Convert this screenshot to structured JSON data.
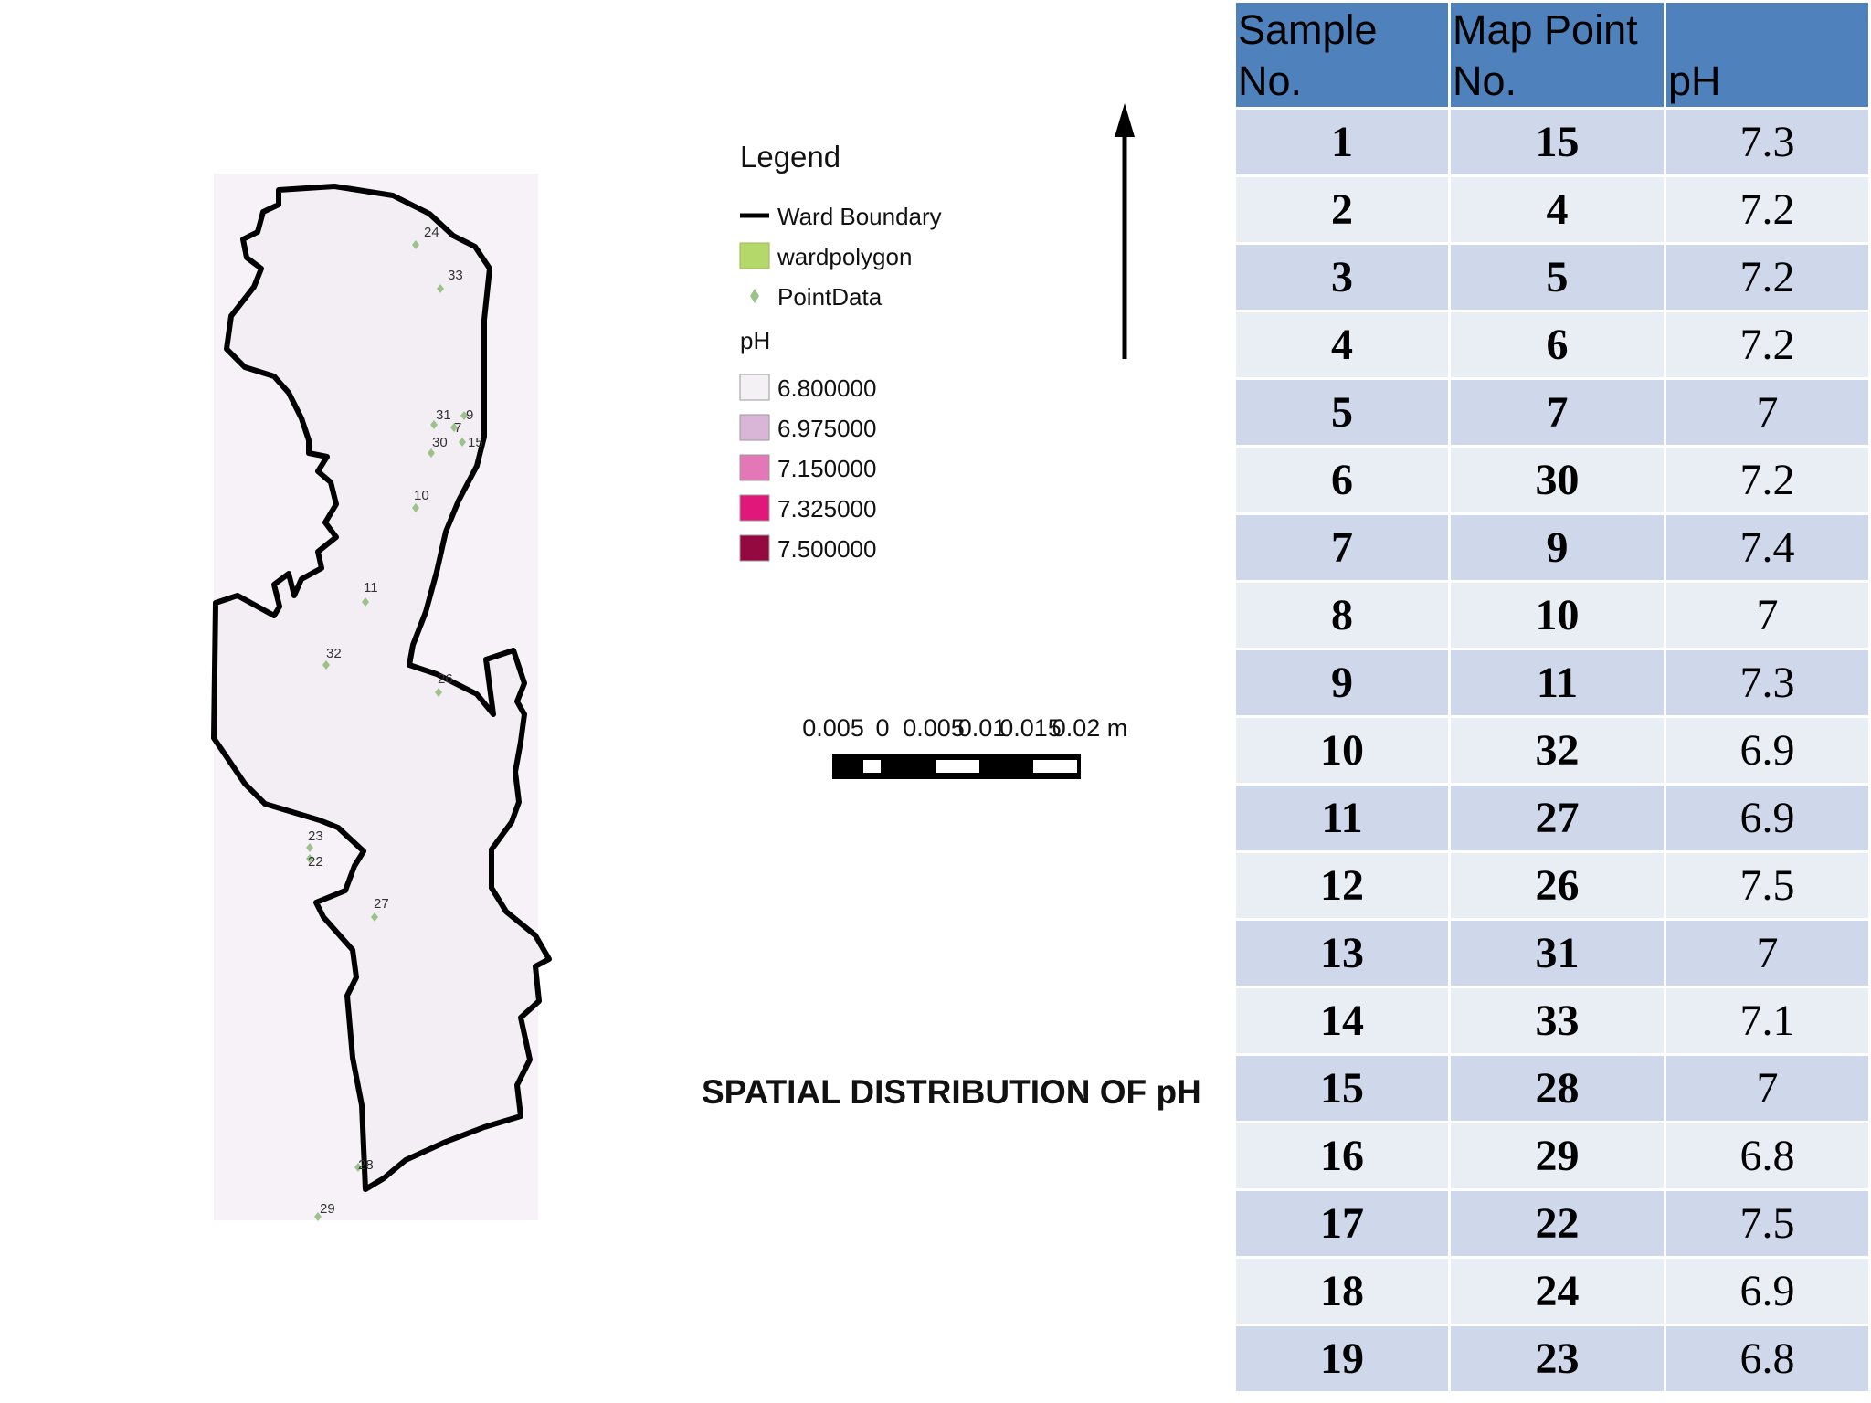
{
  "legend": {
    "title": "Legend",
    "items": [
      {
        "label": "Ward Boundary",
        "symbol": "line",
        "color": "#000000"
      },
      {
        "label": "wardpolygon",
        "symbol": "fill",
        "color": "#b5d86a"
      },
      {
        "label": "PointData",
        "symbol": "point",
        "color": "#9bc28a"
      }
    ],
    "ph_title": "pH",
    "ph_classes": [
      {
        "label": "6.800000",
        "color": "#f4f1f5"
      },
      {
        "label": "6.975000",
        "color": "#d9b6d8"
      },
      {
        "label": "7.150000",
        "color": "#e377b8"
      },
      {
        "label": "7.325000",
        "color": "#e2177a"
      },
      {
        "label": "7.500000",
        "color": "#950a3e"
      }
    ]
  },
  "scale_bar": {
    "ticks": [
      "0.005",
      "0",
      "0.005",
      "0.01",
      "0.015",
      "0.02 m"
    ]
  },
  "map": {
    "title": "SPATIAL DISTRIBUTION OF pH",
    "fill_color": "#f3eef4",
    "point_labels": [
      "24",
      "33",
      "31",
      "7",
      "9",
      "30",
      "15",
      "10",
      "11",
      "32",
      "26",
      "23",
      "22",
      "27",
      "28",
      "29"
    ]
  },
  "table": {
    "headers": [
      "Sample No.",
      "Map Point No.",
      "pH"
    ],
    "rows": [
      [
        "1",
        "15",
        "7.3"
      ],
      [
        "2",
        "4",
        "7.2"
      ],
      [
        "3",
        "5",
        "7.2"
      ],
      [
        "4",
        "6",
        "7.2"
      ],
      [
        "5",
        "7",
        "7"
      ],
      [
        "6",
        "30",
        "7.2"
      ],
      [
        "7",
        "9",
        "7.4"
      ],
      [
        "8",
        "10",
        "7"
      ],
      [
        "9",
        "11",
        "7.3"
      ],
      [
        "10",
        "32",
        "6.9"
      ],
      [
        "11",
        "27",
        "6.9"
      ],
      [
        "12",
        "26",
        "7.5"
      ],
      [
        "13",
        "31",
        "7"
      ],
      [
        "14",
        "33",
        "7.1"
      ],
      [
        "15",
        "28",
        "7"
      ],
      [
        "16",
        "29",
        "6.8"
      ],
      [
        "17",
        "22",
        "7.5"
      ],
      [
        "18",
        "24",
        "6.9"
      ],
      [
        "19",
        "23",
        "6.8"
      ]
    ],
    "colors": {
      "header": "#4f81bd",
      "row_odd": "#cfd8ea",
      "row_even": "#e9edf4"
    }
  }
}
